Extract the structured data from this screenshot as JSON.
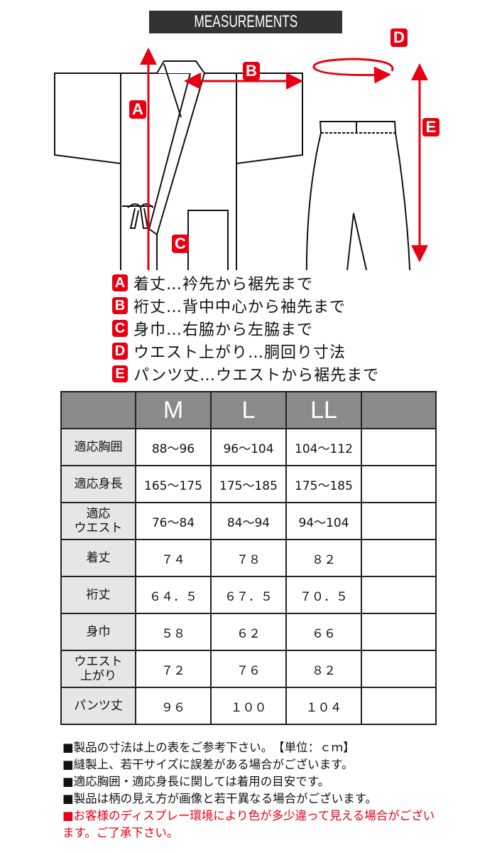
{
  "title": "MEASUREMENTS",
  "colors": {
    "accent_red": "#e60012",
    "header_gray": "#8a8a8a",
    "row_header_gray": "#e6e6e6",
    "title_bg": "#333333"
  },
  "diagram_labels": {
    "a": "A",
    "b": "B",
    "c": "C",
    "d": "D",
    "e": "E"
  },
  "legend": [
    {
      "letter": "A",
      "text": "着丈…衿先から裾先まで"
    },
    {
      "letter": "B",
      "text": "裄丈…背中中心から袖先まで"
    },
    {
      "letter": "C",
      "text": "身巾…右脇から左脇まで"
    },
    {
      "letter": "D",
      "text": "ウエスト上がり…胴回り寸法"
    },
    {
      "letter": "E",
      "text": "パンツ丈…ウエストから裾先まで"
    }
  ],
  "table": {
    "headers": [
      "",
      "M",
      "L",
      "LL",
      ""
    ],
    "rows": [
      {
        "label": "適応胸囲",
        "values": [
          "88～96",
          "96～104",
          "104～112",
          ""
        ]
      },
      {
        "label": "適応身長",
        "values": [
          "165～175",
          "175～185",
          "175～185",
          ""
        ]
      },
      {
        "label": "適応\nウエスト",
        "values": [
          "76～84",
          "84～94",
          "94～104",
          ""
        ]
      },
      {
        "label": "着丈",
        "values": [
          "７４",
          "７８",
          "８２",
          ""
        ]
      },
      {
        "label": "裄丈",
        "values": [
          "６４．５",
          "６７．５",
          "７０．５",
          ""
        ]
      },
      {
        "label": "身巾",
        "values": [
          "５８",
          "６２",
          "６６",
          ""
        ]
      },
      {
        "label": "ウエスト\n上がり",
        "values": [
          "７２",
          "７６",
          "８２",
          ""
        ]
      },
      {
        "label": "パンツ丈",
        "values": [
          "９６",
          "１００",
          "１０４",
          ""
        ]
      }
    ]
  },
  "notes": [
    "■製品の寸法は上の表をご参考下さい。　【単位：ｃｍ】",
    "■縫製上、若干サイズに誤差がある場合がございます。",
    "■適応胸囲・適応身長に関しては着用の目安です。",
    "■製品は柄の見え方が画像と若干異なる場合がございます。",
    "■お客様のディスプレー環境により色が多少違って見える場合がございます。ご了承下さい。"
  ]
}
